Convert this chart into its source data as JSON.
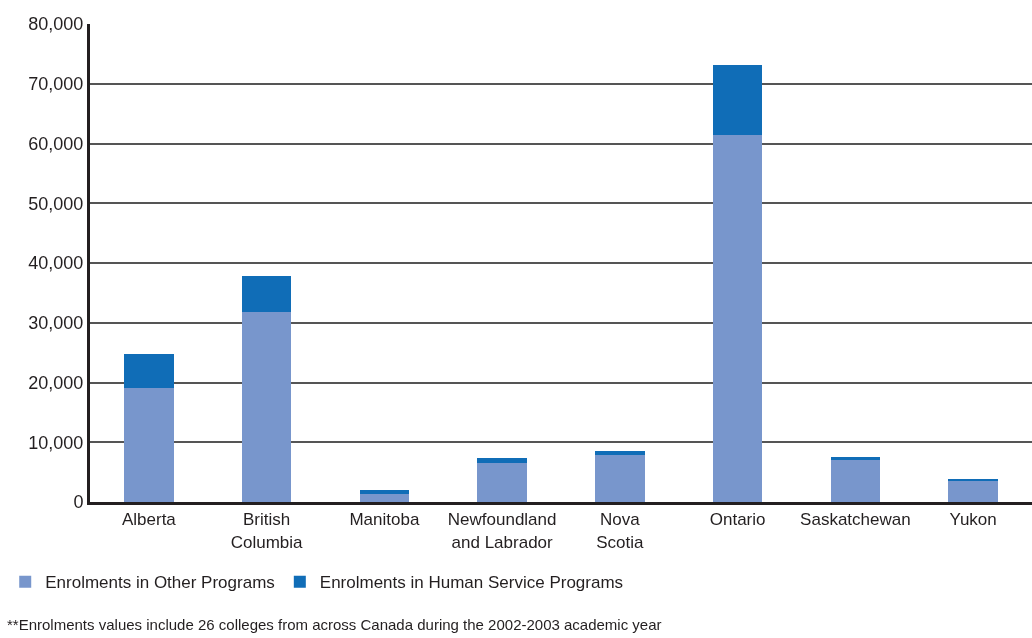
{
  "chart_data": {
    "type": "bar",
    "stacked": true,
    "categories": [
      "Alberta",
      "British Columbia",
      "Manitoba",
      "Newfoundland and Labrador",
      "Nova Scotia",
      "Ontario",
      "Saskatchewan",
      "Yukon"
    ],
    "series": [
      {
        "name": "Enrolments in Other Programs",
        "color": "#7896cc",
        "values": [
          19100,
          31800,
          1300,
          6500,
          7800,
          61500,
          7000,
          3600
        ]
      },
      {
        "name": "Enrolments in Human Service Programs",
        "color": "#106db7",
        "values": [
          5600,
          6100,
          700,
          800,
          700,
          11700,
          600,
          300
        ]
      }
    ],
    "ylim": [
      0,
      80000
    ],
    "yticks": [
      {
        "value": 0,
        "label": "0"
      },
      {
        "value": 10000,
        "label": "10,000"
      },
      {
        "value": 20000,
        "label": "20,000"
      },
      {
        "value": 30000,
        "label": "30,000"
      },
      {
        "value": 40000,
        "label": "40,000"
      },
      {
        "value": 50000,
        "label": "50,000"
      },
      {
        "value": 60000,
        "label": "60,000"
      },
      {
        "value": 70000,
        "label": "70,000"
      },
      {
        "value": 80000,
        "label": "80,000"
      }
    ],
    "grid": "y",
    "legend": "bottom left",
    "annotations": [
      "**Enrolments values include 26 colleges from across Canada during the 2002-2003 academic year"
    ]
  }
}
